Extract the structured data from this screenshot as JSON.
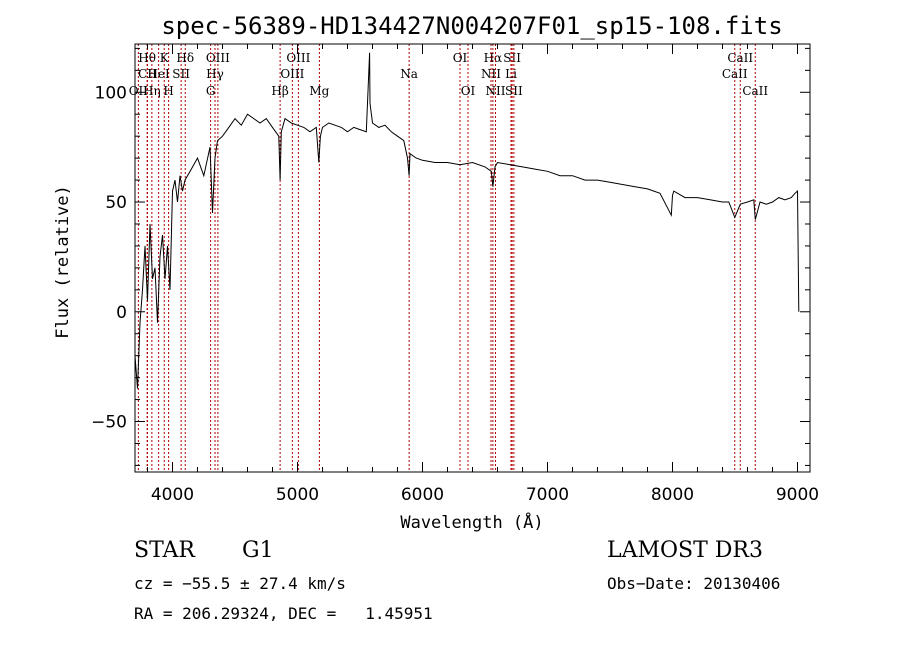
{
  "chart_data": {
    "type": "line",
    "title": "spec-56389-HD134427N004207F01_sp15-108.fits",
    "xlabel": "Wavelength (Å)",
    "ylabel": "Flux (relative)",
    "xlim": [
      3700,
      9100
    ],
    "ylim": [
      -73,
      122
    ],
    "xticks": [
      4000,
      5000,
      6000,
      7000,
      8000,
      9000
    ],
    "xtick_labels": [
      "4000",
      "5000",
      "6000",
      "7000",
      "8000",
      "9000"
    ],
    "yticks": [
      -50,
      0,
      50,
      100
    ],
    "ytick_labels": [
      "−50",
      "0",
      "50",
      "100"
    ],
    "series": [
      {
        "name": "spectrum",
        "x": [
          3700,
          3720,
          3740,
          3760,
          3780,
          3800,
          3820,
          3840,
          3860,
          3880,
          3900,
          3920,
          3940,
          3960,
          3980,
          4000,
          4020,
          4040,
          4060,
          4080,
          4100,
          4150,
          4200,
          4250,
          4300,
          4320,
          4340,
          4360,
          4400,
          4450,
          4500,
          4550,
          4600,
          4650,
          4700,
          4750,
          4800,
          4850,
          4861,
          4870,
          4900,
          4950,
          5000,
          5050,
          5100,
          5150,
          5170,
          5183,
          5200,
          5250,
          5300,
          5350,
          5400,
          5450,
          5500,
          5550,
          5577,
          5580,
          5600,
          5650,
          5700,
          5750,
          5800,
          5850,
          5880,
          5893,
          5900,
          5950,
          6000,
          6100,
          6200,
          6300,
          6400,
          6500,
          6550,
          6563,
          6580,
          6600,
          6700,
          6800,
          6900,
          7000,
          7100,
          7200,
          7300,
          7400,
          7500,
          7600,
          7700,
          7800,
          7900,
          7990,
          8000,
          8010,
          8100,
          8200,
          8300,
          8400,
          8450,
          8498,
          8542,
          8600,
          8650,
          8662,
          8700,
          8750,
          8800,
          8850,
          8900,
          8950,
          8980,
          9000,
          9010
        ],
        "y": [
          -20,
          -35,
          -5,
          10,
          30,
          5,
          40,
          15,
          20,
          -5,
          25,
          35,
          15,
          30,
          10,
          55,
          60,
          50,
          62,
          55,
          60,
          65,
          70,
          62,
          75,
          45,
          70,
          78,
          80,
          84,
          88,
          85,
          90,
          88,
          86,
          88,
          84,
          80,
          60,
          82,
          88,
          86,
          85,
          84,
          82,
          84,
          68,
          80,
          84,
          86,
          85,
          84,
          82,
          84,
          83,
          82,
          118,
          95,
          86,
          84,
          85,
          82,
          80,
          78,
          70,
          62,
          72,
          70,
          69,
          68,
          68,
          67,
          68,
          66,
          64,
          57,
          66,
          68,
          67,
          66,
          65,
          64,
          62,
          62,
          60,
          60,
          59,
          58,
          57,
          56,
          54,
          44,
          53,
          55,
          52,
          52,
          51,
          50,
          50,
          43,
          49,
          50,
          51,
          42,
          50,
          49,
          50,
          52,
          51,
          52,
          54,
          55,
          0
        ]
      }
    ],
    "lines": [
      {
        "name": "Hθ",
        "wl": 3797,
        "row": 0
      },
      {
        "name": "CII",
        "wl": 3800,
        "row": 1
      },
      {
        "name": "OII",
        "wl": 3727,
        "row": 2
      },
      {
        "name": "Hη",
        "wl": 3835,
        "row": 2
      },
      {
        "name": "K",
        "wl": 3934,
        "row": 0
      },
      {
        "name": "HeI",
        "wl": 3889,
        "row": 1
      },
      {
        "name": "H",
        "wl": 3969,
        "row": 2
      },
      {
        "name": "Hδ",
        "wl": 4102,
        "row": 0
      },
      {
        "name": "SII",
        "wl": 4069,
        "row": 1
      },
      {
        "name": "OIII",
        "wl": 4363,
        "row": 0
      },
      {
        "name": "Hγ",
        "wl": 4340,
        "row": 1
      },
      {
        "name": "G",
        "wl": 4305,
        "row": 2
      },
      {
        "name": "OIII",
        "wl": 5007,
        "row": 0
      },
      {
        "name": "OIII",
        "wl": 4959,
        "row": 1
      },
      {
        "name": "Hβ",
        "wl": 4861,
        "row": 2
      },
      {
        "name": "Mg",
        "wl": 5175,
        "row": 2
      },
      {
        "name": "Na",
        "wl": 5893,
        "row": 1
      },
      {
        "name": "OI",
        "wl": 6300,
        "row": 0
      },
      {
        "name": "OI",
        "wl": 6364,
        "row": 2
      },
      {
        "name": "Hα",
        "wl": 6563,
        "row": 0
      },
      {
        "name": "NII",
        "wl": 6548,
        "row": 1
      },
      {
        "name": "NII",
        "wl": 6584,
        "row": 2
      },
      {
        "name": "SII",
        "wl": 6717,
        "row": 0
      },
      {
        "name": "Li",
        "wl": 6708,
        "row": 1
      },
      {
        "name": "SII",
        "wl": 6731,
        "row": 2
      },
      {
        "name": "CaII",
        "wl": 8542,
        "row": 0
      },
      {
        "name": "CaII",
        "wl": 8498,
        "row": 1
      },
      {
        "name": "CaII",
        "wl": 8662,
        "row": 2
      }
    ]
  },
  "info": {
    "class": "STAR",
    "subclass": "G1",
    "survey": "LAMOST DR3",
    "cz": "cz = −55.5 ± 27.4 km/s",
    "obs_date": "Obs−Date: 20130406",
    "radec": "RA = 206.29324, DEC =   1.45951"
  },
  "colors": {
    "line_marker": "#b00000",
    "spectrum": "#000000"
  }
}
